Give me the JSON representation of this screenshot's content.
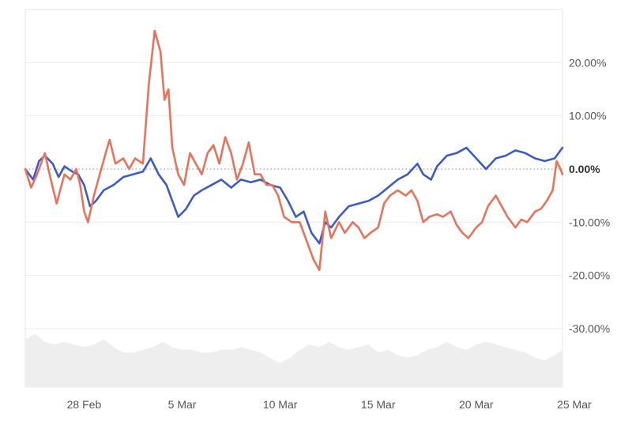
{
  "chart_data": {
    "type": "line",
    "title": "",
    "xlabel": "",
    "ylabel": "",
    "x_ticks": [
      "28 Feb",
      "5 Mar",
      "10 Mar",
      "15 Mar",
      "20 Mar",
      "25 Mar"
    ],
    "x_range_days": [
      -3.0,
      24.4
    ],
    "x_tick_days": [
      0,
      5,
      10,
      15,
      20,
      25
    ],
    "y_ticks": [
      "20.00%",
      "10.00%",
      "0.00%",
      "-10.00%",
      "-20.00%",
      "-30.00%"
    ],
    "y_tick_values": [
      20,
      10,
      0,
      -10,
      -20,
      -30
    ],
    "ylim": [
      -41,
      30
    ],
    "grid": true,
    "zero_line": "dotted",
    "legend": "none",
    "series": [
      {
        "color": "#3b5bcc",
        "points": [
          [
            -3.0,
            0.0
          ],
          [
            -2.6,
            -2.0
          ],
          [
            -2.3,
            1.5
          ],
          [
            -2.0,
            2.5
          ],
          [
            -1.6,
            1.0
          ],
          [
            -1.3,
            -1.5
          ],
          [
            -1.0,
            0.5
          ],
          [
            -0.6,
            -0.5
          ],
          [
            -0.3,
            -1.0
          ],
          [
            0.0,
            -3.0
          ],
          [
            0.3,
            -7.0
          ],
          [
            0.6,
            -6.0
          ],
          [
            1.0,
            -4.0
          ],
          [
            1.5,
            -3.0
          ],
          [
            2.0,
            -1.5
          ],
          [
            2.5,
            -1.0
          ],
          [
            3.0,
            -0.5
          ],
          [
            3.4,
            2.0
          ],
          [
            3.8,
            -1.0
          ],
          [
            4.2,
            -3.0
          ],
          [
            4.6,
            -7.0
          ],
          [
            4.8,
            -9.0
          ],
          [
            5.2,
            -7.5
          ],
          [
            5.6,
            -5.0
          ],
          [
            6.0,
            -4.0
          ],
          [
            6.5,
            -3.0
          ],
          [
            7.0,
            -2.0
          ],
          [
            7.5,
            -3.5
          ],
          [
            8.0,
            -2.0
          ],
          [
            8.5,
            -2.5
          ],
          [
            9.0,
            -2.0
          ],
          [
            9.5,
            -3.0
          ],
          [
            10.0,
            -3.5
          ],
          [
            10.4,
            -6.0
          ],
          [
            10.8,
            -9.0
          ],
          [
            11.2,
            -8.0
          ],
          [
            11.6,
            -12.0
          ],
          [
            12.0,
            -14.0
          ],
          [
            12.3,
            -10.0
          ],
          [
            12.6,
            -11.0
          ],
          [
            13.0,
            -9.0
          ],
          [
            13.5,
            -7.0
          ],
          [
            14.0,
            -6.5
          ],
          [
            14.5,
            -6.0
          ],
          [
            15.0,
            -5.0
          ],
          [
            15.5,
            -3.5
          ],
          [
            16.0,
            -2.0
          ],
          [
            16.5,
            -1.0
          ],
          [
            17.0,
            1.0
          ],
          [
            17.3,
            -1.0
          ],
          [
            17.7,
            -2.0
          ],
          [
            18.0,
            0.5
          ],
          [
            18.5,
            2.5
          ],
          [
            19.0,
            3.0
          ],
          [
            19.5,
            4.0
          ],
          [
            20.0,
            2.0
          ],
          [
            20.5,
            0.0
          ],
          [
            21.0,
            2.0
          ],
          [
            21.5,
            2.5
          ],
          [
            22.0,
            3.5
          ],
          [
            22.5,
            3.0
          ],
          [
            23.0,
            2.0
          ],
          [
            23.5,
            1.5
          ],
          [
            24.0,
            2.0
          ],
          [
            24.4,
            4.0
          ]
        ]
      },
      {
        "color": "#e8735a",
        "points": [
          [
            -3.0,
            0.0
          ],
          [
            -2.7,
            -3.5
          ],
          [
            -2.4,
            -1.0
          ],
          [
            -2.0,
            3.0
          ],
          [
            -1.7,
            -2.0
          ],
          [
            -1.4,
            -6.5
          ],
          [
            -1.0,
            -1.0
          ],
          [
            -0.7,
            -2.0
          ],
          [
            -0.4,
            0.0
          ],
          [
            -0.2,
            -3.0
          ],
          [
            0.0,
            -8.0
          ],
          [
            0.2,
            -10.0
          ],
          [
            0.5,
            -5.0
          ],
          [
            0.8,
            -1.0
          ],
          [
            1.1,
            3.0
          ],
          [
            1.3,
            5.5
          ],
          [
            1.6,
            1.0
          ],
          [
            2.0,
            2.0
          ],
          [
            2.3,
            0.0
          ],
          [
            2.6,
            2.0
          ],
          [
            3.0,
            1.0
          ],
          [
            3.3,
            16.0
          ],
          [
            3.6,
            26.0
          ],
          [
            3.9,
            22.0
          ],
          [
            4.1,
            13.0
          ],
          [
            4.3,
            15.0
          ],
          [
            4.5,
            4.0
          ],
          [
            4.8,
            -1.0
          ],
          [
            5.1,
            -3.0
          ],
          [
            5.4,
            3.0
          ],
          [
            5.7,
            1.0
          ],
          [
            6.0,
            -1.0
          ],
          [
            6.3,
            3.0
          ],
          [
            6.6,
            4.5
          ],
          [
            6.9,
            1.0
          ],
          [
            7.2,
            6.0
          ],
          [
            7.5,
            3.0
          ],
          [
            7.8,
            -2.0
          ],
          [
            8.1,
            1.0
          ],
          [
            8.4,
            5.0
          ],
          [
            8.7,
            -1.0
          ],
          [
            9.0,
            -1.0
          ],
          [
            9.3,
            -3.0
          ],
          [
            9.6,
            -3.0
          ],
          [
            9.9,
            -5.0
          ],
          [
            10.2,
            -9.0
          ],
          [
            10.6,
            -10.0
          ],
          [
            11.0,
            -10.0
          ],
          [
            11.3,
            -13.0
          ],
          [
            11.7,
            -17.0
          ],
          [
            12.0,
            -19.0
          ],
          [
            12.3,
            -8.0
          ],
          [
            12.6,
            -13.0
          ],
          [
            13.0,
            -10.0
          ],
          [
            13.3,
            -12.0
          ],
          [
            13.7,
            -10.0
          ],
          [
            14.0,
            -11.0
          ],
          [
            14.3,
            -13.0
          ],
          [
            14.6,
            -12.0
          ],
          [
            15.0,
            -11.0
          ],
          [
            15.3,
            -6.5
          ],
          [
            15.6,
            -5.0
          ],
          [
            16.0,
            -4.0
          ],
          [
            16.4,
            -5.0
          ],
          [
            16.7,
            -4.0
          ],
          [
            17.0,
            -6.0
          ],
          [
            17.3,
            -10.0
          ],
          [
            17.6,
            -9.0
          ],
          [
            18.0,
            -8.5
          ],
          [
            18.3,
            -9.0
          ],
          [
            18.7,
            -8.0
          ],
          [
            19.0,
            -10.5
          ],
          [
            19.3,
            -12.0
          ],
          [
            19.6,
            -13.0
          ],
          [
            20.0,
            -11.0
          ],
          [
            20.3,
            -10.0
          ],
          [
            20.6,
            -7.0
          ],
          [
            21.0,
            -5.0
          ],
          [
            21.3,
            -7.0
          ],
          [
            21.6,
            -9.0
          ],
          [
            22.0,
            -11.0
          ],
          [
            22.3,
            -9.5
          ],
          [
            22.6,
            -10.0
          ],
          [
            23.0,
            -8.0
          ],
          [
            23.3,
            -7.5
          ],
          [
            23.6,
            -6.0
          ],
          [
            23.9,
            -4.0
          ],
          [
            24.1,
            1.5
          ],
          [
            24.3,
            0.0
          ],
          [
            24.4,
            -1.0
          ]
        ]
      }
    ],
    "volume": [
      [
        -3.0,
        -32.0
      ],
      [
        -2.5,
        -31.0
      ],
      [
        -2.0,
        -32.5
      ],
      [
        -1.5,
        -33.0
      ],
      [
        -1.0,
        -32.5
      ],
      [
        -0.5,
        -33.0
      ],
      [
        0.0,
        -33.5
      ],
      [
        0.5,
        -33.0
      ],
      [
        1.0,
        -32.0
      ],
      [
        1.5,
        -33.5
      ],
      [
        2.0,
        -34.5
      ],
      [
        2.5,
        -34.5
      ],
      [
        3.0,
        -34.0
      ],
      [
        3.5,
        -33.5
      ],
      [
        4.0,
        -32.5
      ],
      [
        4.5,
        -33.5
      ],
      [
        5.0,
        -34.0
      ],
      [
        5.5,
        -34.0
      ],
      [
        6.0,
        -34.5
      ],
      [
        6.5,
        -34.5
      ],
      [
        7.0,
        -34.0
      ],
      [
        7.5,
        -34.0
      ],
      [
        8.0,
        -33.5
      ],
      [
        8.5,
        -34.0
      ],
      [
        9.0,
        -34.5
      ],
      [
        9.5,
        -35.5
      ],
      [
        10.0,
        -36.5
      ],
      [
        10.5,
        -35.5
      ],
      [
        11.0,
        -34.0
      ],
      [
        11.5,
        -33.0
      ],
      [
        12.0,
        -33.5
      ],
      [
        12.5,
        -32.5
      ],
      [
        13.0,
        -33.5
      ],
      [
        13.5,
        -34.0
      ],
      [
        14.0,
        -33.5
      ],
      [
        14.5,
        -33.0
      ],
      [
        15.0,
        -34.5
      ],
      [
        15.5,
        -34.0
      ],
      [
        16.0,
        -35.0
      ],
      [
        16.5,
        -35.5
      ],
      [
        17.0,
        -35.0
      ],
      [
        17.5,
        -34.0
      ],
      [
        18.0,
        -33.5
      ],
      [
        18.5,
        -32.5
      ],
      [
        19.0,
        -33.5
      ],
      [
        19.5,
        -34.0
      ],
      [
        20.0,
        -33.0
      ],
      [
        20.5,
        -32.5
      ],
      [
        21.0,
        -33.0
      ],
      [
        21.5,
        -33.5
      ],
      [
        22.0,
        -34.0
      ],
      [
        22.5,
        -34.5
      ],
      [
        23.0,
        -35.5
      ],
      [
        23.5,
        -36.0
      ],
      [
        24.0,
        -35.0
      ],
      [
        24.4,
        -34.0
      ]
    ]
  }
}
